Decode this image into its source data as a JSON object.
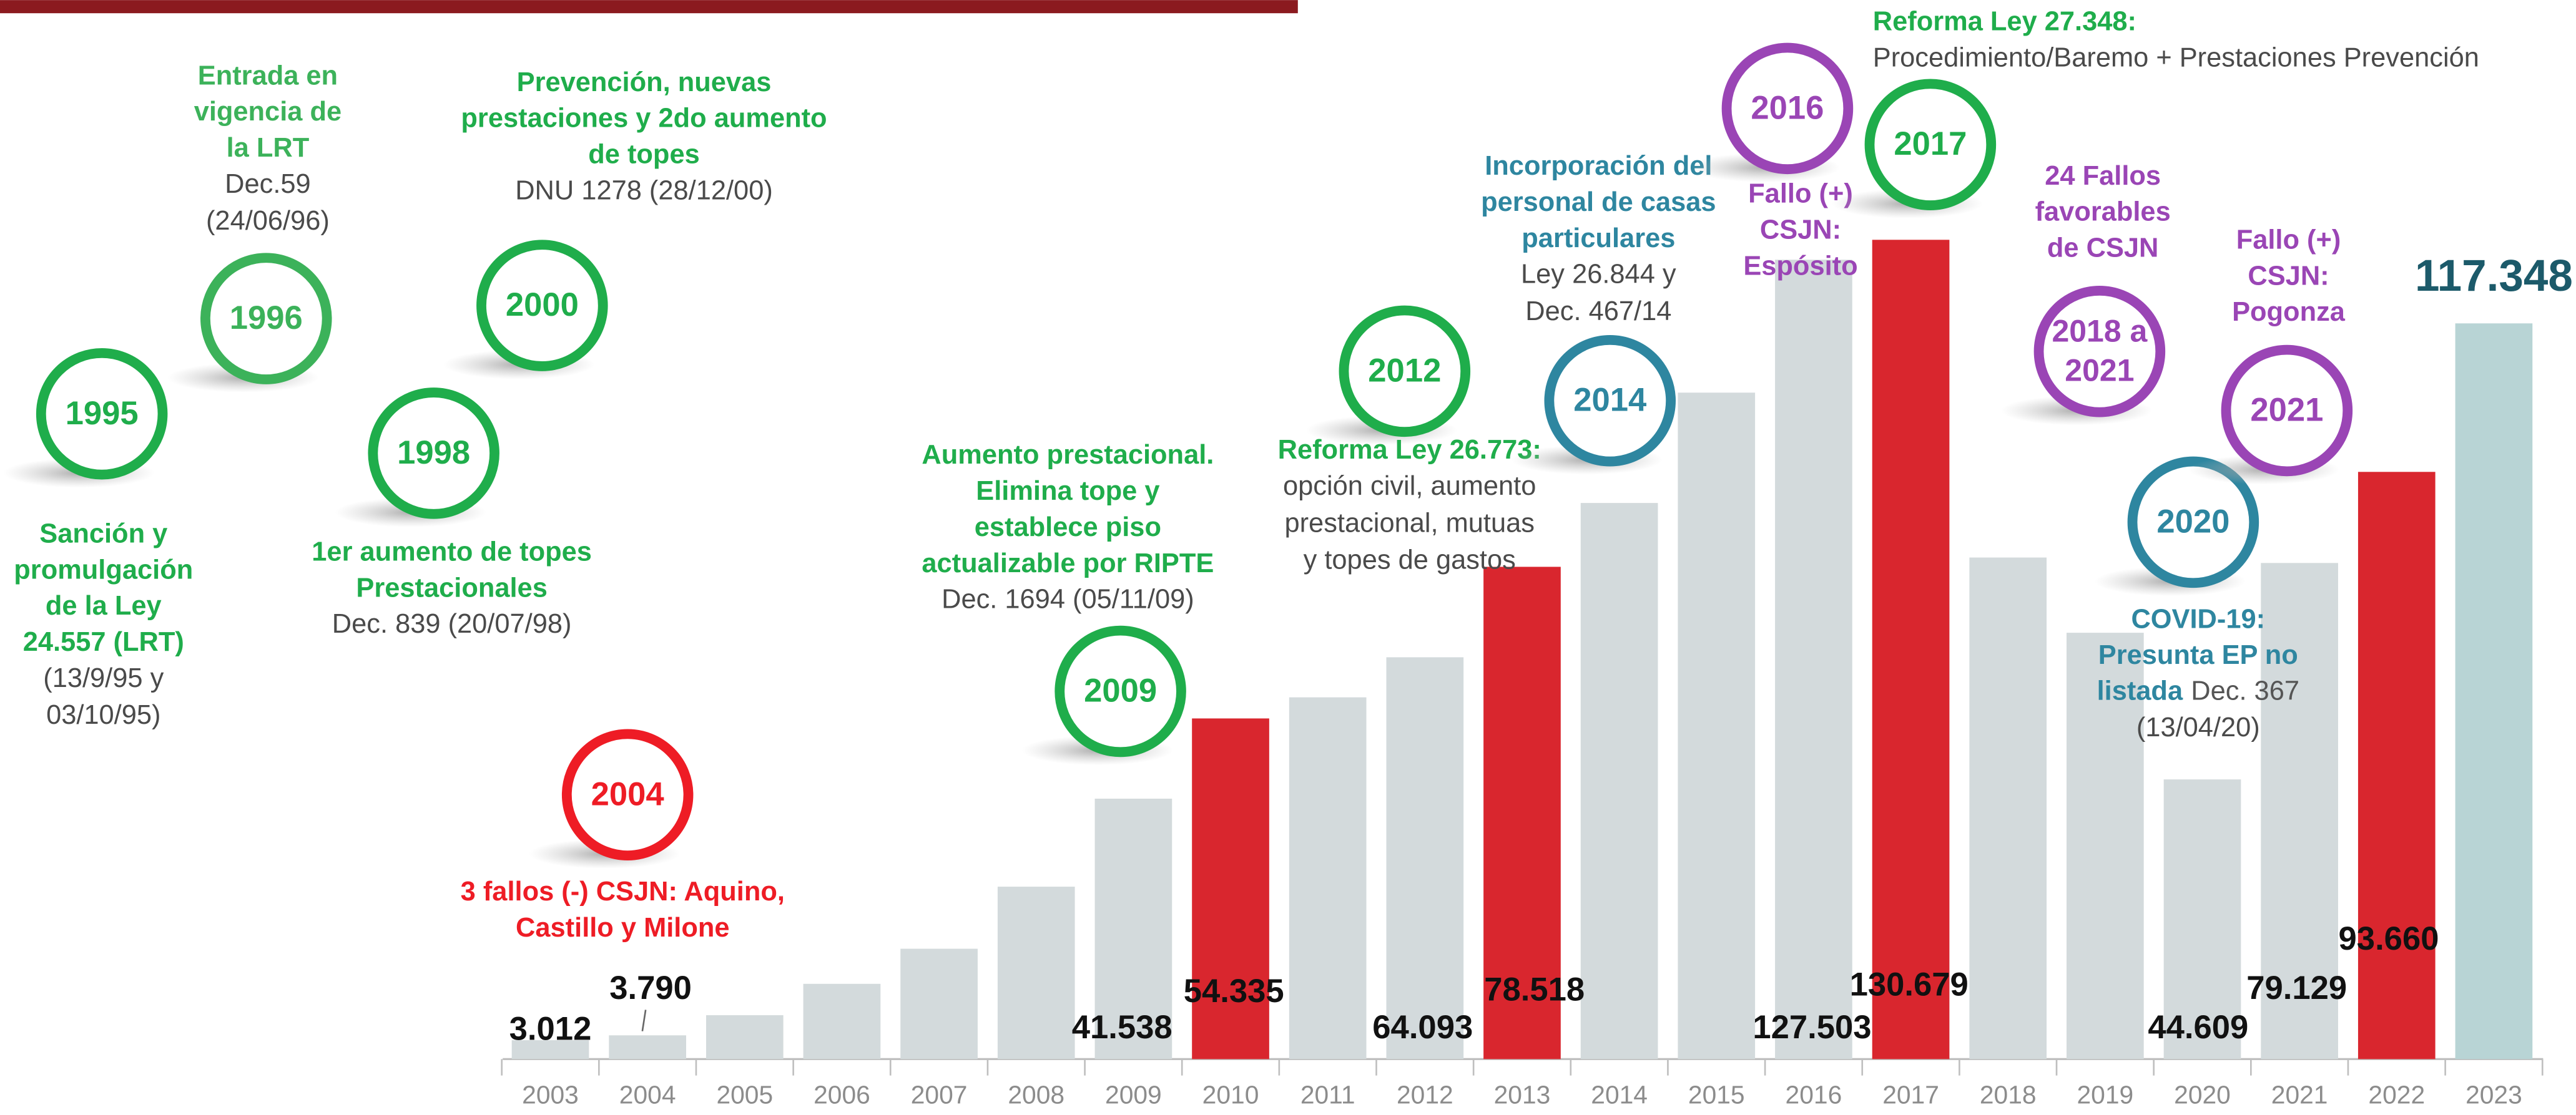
{
  "chart_data": {
    "type": "bar",
    "categories": [
      "2003",
      "2004",
      "2005",
      "2006",
      "2007",
      "2008",
      "2009",
      "2010",
      "2011",
      "2012",
      "2013",
      "2014",
      "2015",
      "2016",
      "2017",
      "2018",
      "2019",
      "2020",
      "2021",
      "2022",
      "2023"
    ],
    "values": [
      3012,
      3790,
      7000,
      12000,
      17600,
      27500,
      41538,
      54335,
      57700,
      64093,
      78518,
      88700,
      106300,
      127503,
      130679,
      80000,
      68000,
      44609,
      79129,
      93660,
      117348
    ],
    "value_labels": [
      "3.012",
      "3.790",
      null,
      null,
      null,
      null,
      "41.538",
      "54.335",
      null,
      "64.093",
      "78.518",
      null,
      null,
      "127.503",
      "130.679",
      null,
      null,
      "44.609",
      "79.129",
      "93.660",
      "117.348"
    ],
    "colors": [
      "#d3dadc",
      "#d3dadc",
      "#d3dadc",
      "#d3dadc",
      "#d3dadc",
      "#d3dadc",
      "#d3dadc",
      "#d9262e",
      "#d3dadc",
      "#d3dadc",
      "#d9262e",
      "#d3dadc",
      "#d3dadc",
      "#d3dadc",
      "#d9262e",
      "#d3dadc",
      "#d3dadc",
      "#d3dadc",
      "#d3dadc",
      "#d9262e",
      "#b8d4d5"
    ],
    "annotations": [
      {
        "year": "1995",
        "color": "#1fad4b",
        "title_lines": [
          "Sanción y",
          "promulgación",
          "de la Ley",
          "24.557 (LRT)"
        ],
        "detail_lines": [
          "(13/9/95 y",
          "03/10/95)"
        ]
      },
      {
        "year": "1996",
        "color": "#3cb25a",
        "title_lines": [
          "Entrada en",
          "vigencia de",
          "la LRT"
        ],
        "detail_lines": [
          "Dec.59",
          "(24/06/96)"
        ]
      },
      {
        "year": "1998",
        "color": "#1fad4b",
        "title_lines": [
          "1er aumento de topes",
          "Prestacionales"
        ],
        "detail_lines": [
          "Dec. 839 (20/07/98)"
        ]
      },
      {
        "year": "2000",
        "color": "#1fad4b",
        "title_lines": [
          "Prevención, nuevas",
          "prestaciones y 2do aumento",
          "de topes"
        ],
        "detail_lines": [
          "DNU 1278 (28/12/00)"
        ]
      },
      {
        "year": "2004",
        "color": "#ee1c25",
        "title_lines": [
          "3 fallos (-) CSJN: Aquino,",
          "Castillo y Milone"
        ],
        "detail_lines": []
      },
      {
        "year": "2009",
        "color": "#1fad4b",
        "title_lines": [
          "Aumento prestacional.",
          "Elimina tope y",
          "establece piso",
          "actualizable por RIPTE"
        ],
        "detail_lines": [
          "Dec. 1694 (05/11/09)"
        ]
      },
      {
        "year": "2012",
        "color": "#1fad4b",
        "title_lines": [
          "Reforma Ley 26.773:"
        ],
        "detail_lines": [
          "opción civil, aumento",
          "prestacional, mutuas",
          "y topes de gastos"
        ]
      },
      {
        "year": "2014",
        "color": "#2e86a0",
        "title_lines": [
          "Incorporación del",
          "personal de casas",
          "particulares"
        ],
        "detail_lines": [
          "Ley 26.844 y",
          "Dec. 467/14"
        ]
      },
      {
        "year": "2016",
        "color": "#9a45b5",
        "title_lines": [
          "Fallo (+)",
          "CSJN:",
          "Espósito"
        ],
        "detail_lines": []
      },
      {
        "year": "2017",
        "color": "#1fad4b",
        "title_lines": [
          "Reforma Ley 27.348:"
        ],
        "detail_lines": [
          "Procedimiento/Baremo + Prestaciones Prevención"
        ]
      },
      {
        "year": [
          "2018 a",
          "2021"
        ],
        "color": "#9a45b5",
        "title_lines": [
          "24 Fallos",
          "favorables",
          "de  CSJN"
        ],
        "detail_lines": []
      },
      {
        "year": "2020",
        "color": "#2e86a0",
        "title_lines": [
          "COVID-19:",
          "Presunta EP no",
          "listada"
        ],
        "detail_lines": [
          "Dec. 367",
          "(13/04/20)"
        ]
      },
      {
        "year": "2021",
        "color": "#9a45b5",
        "title_lines": [
          "Fallo (+)",
          "CSJN:",
          "Pogonza"
        ],
        "detail_lines": []
      }
    ]
  }
}
